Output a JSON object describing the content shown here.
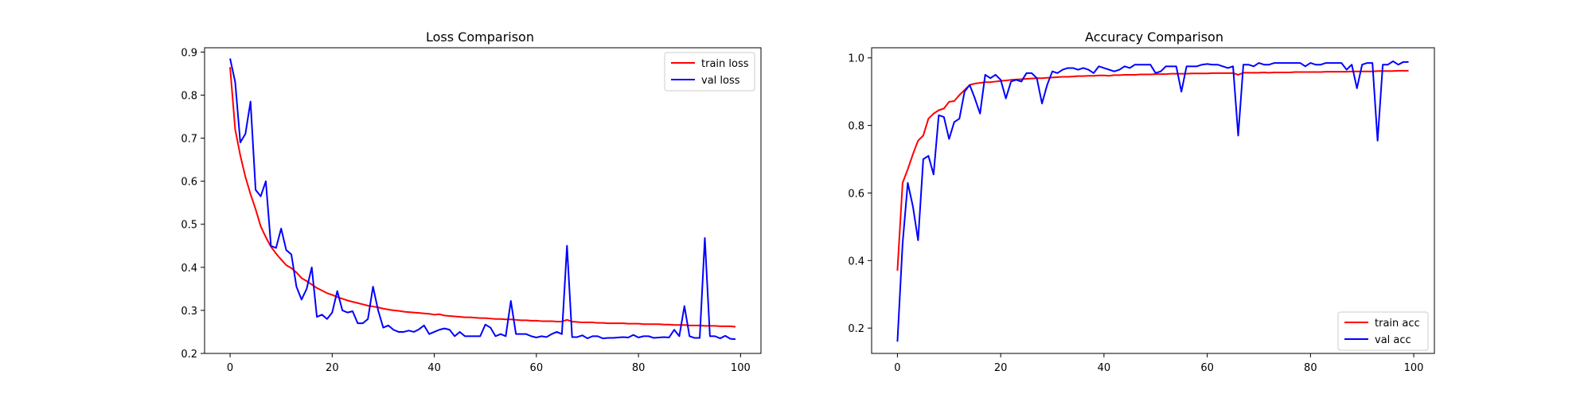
{
  "chart_data": [
    {
      "type": "line",
      "title": "Loss Comparison",
      "xlabel": "",
      "ylabel": "",
      "xlim": [
        -5,
        104
      ],
      "ylim": [
        0.2,
        0.91
      ],
      "xticks": [
        0,
        20,
        40,
        60,
        80,
        100
      ],
      "yticks": [
        0.2,
        0.3,
        0.4,
        0.5,
        0.6,
        0.7,
        0.8,
        0.9
      ],
      "grid": false,
      "legend_position": "top-right",
      "x": [
        0,
        1,
        2,
        3,
        4,
        5,
        6,
        7,
        8,
        9,
        10,
        11,
        12,
        13,
        14,
        15,
        16,
        17,
        18,
        19,
        20,
        21,
        22,
        23,
        24,
        25,
        26,
        27,
        28,
        29,
        30,
        31,
        32,
        33,
        34,
        35,
        36,
        37,
        38,
        39,
        40,
        41,
        42,
        43,
        44,
        45,
        46,
        47,
        48,
        49,
        50,
        51,
        52,
        53,
        54,
        55,
        56,
        57,
        58,
        59,
        60,
        61,
        62,
        63,
        64,
        65,
        66,
        67,
        68,
        69,
        70,
        71,
        72,
        73,
        74,
        75,
        76,
        77,
        78,
        79,
        80,
        81,
        82,
        83,
        84,
        85,
        86,
        87,
        88,
        89,
        90,
        91,
        92,
        93,
        94,
        95,
        96,
        97,
        98,
        99
      ],
      "series": [
        {
          "name": "train loss",
          "color": "#ff0000",
          "values": [
            0.865,
            0.72,
            0.66,
            0.61,
            0.57,
            0.535,
            0.495,
            0.47,
            0.448,
            0.432,
            0.418,
            0.405,
            0.398,
            0.388,
            0.375,
            0.368,
            0.36,
            0.352,
            0.346,
            0.34,
            0.336,
            0.331,
            0.327,
            0.323,
            0.32,
            0.317,
            0.314,
            0.311,
            0.309,
            0.307,
            0.304,
            0.302,
            0.3,
            0.299,
            0.297,
            0.296,
            0.295,
            0.294,
            0.293,
            0.292,
            0.29,
            0.291,
            0.288,
            0.287,
            0.286,
            0.285,
            0.284,
            0.284,
            0.283,
            0.282,
            0.282,
            0.281,
            0.28,
            0.28,
            0.279,
            0.279,
            0.278,
            0.277,
            0.277,
            0.276,
            0.276,
            0.275,
            0.275,
            0.275,
            0.274,
            0.274,
            0.278,
            0.274,
            0.273,
            0.272,
            0.272,
            0.272,
            0.271,
            0.271,
            0.27,
            0.27,
            0.27,
            0.27,
            0.269,
            0.269,
            0.269,
            0.268,
            0.268,
            0.268,
            0.268,
            0.267,
            0.267,
            0.266,
            0.266,
            0.266,
            0.265,
            0.265,
            0.265,
            0.264,
            0.264,
            0.264,
            0.263,
            0.263,
            0.263,
            0.262
          ]
        },
        {
          "name": "val loss",
          "color": "#0000ff",
          "values": [
            0.885,
            0.83,
            0.69,
            0.71,
            0.785,
            0.58,
            0.565,
            0.6,
            0.45,
            0.445,
            0.49,
            0.44,
            0.43,
            0.355,
            0.325,
            0.35,
            0.4,
            0.285,
            0.29,
            0.28,
            0.295,
            0.345,
            0.3,
            0.295,
            0.298,
            0.27,
            0.27,
            0.28,
            0.355,
            0.3,
            0.26,
            0.265,
            0.255,
            0.25,
            0.25,
            0.253,
            0.25,
            0.256,
            0.265,
            0.245,
            0.25,
            0.255,
            0.258,
            0.255,
            0.24,
            0.25,
            0.24,
            0.24,
            0.24,
            0.24,
            0.267,
            0.26,
            0.24,
            0.245,
            0.24,
            0.322,
            0.245,
            0.245,
            0.245,
            0.24,
            0.237,
            0.24,
            0.238,
            0.245,
            0.25,
            0.245,
            0.45,
            0.238,
            0.238,
            0.242,
            0.235,
            0.24,
            0.24,
            0.235,
            0.236,
            0.236,
            0.237,
            0.238,
            0.237,
            0.243,
            0.237,
            0.24,
            0.24,
            0.236,
            0.237,
            0.238,
            0.237,
            0.255,
            0.24,
            0.31,
            0.24,
            0.236,
            0.236,
            0.468,
            0.24,
            0.24,
            0.235,
            0.241,
            0.234,
            0.233
          ]
        }
      ]
    },
    {
      "type": "line",
      "title": "Accuracy Comparison",
      "xlabel": "",
      "ylabel": "",
      "xlim": [
        -5,
        104
      ],
      "ylim": [
        0.125,
        1.03
      ],
      "xticks": [
        0,
        20,
        40,
        60,
        80,
        100
      ],
      "yticks": [
        0.2,
        0.4,
        0.6,
        0.8,
        1.0
      ],
      "grid": false,
      "legend_position": "bottom-right",
      "x": [
        0,
        1,
        2,
        3,
        4,
        5,
        6,
        7,
        8,
        9,
        10,
        11,
        12,
        13,
        14,
        15,
        16,
        17,
        18,
        19,
        20,
        21,
        22,
        23,
        24,
        25,
        26,
        27,
        28,
        29,
        30,
        31,
        32,
        33,
        34,
        35,
        36,
        37,
        38,
        39,
        40,
        41,
        42,
        43,
        44,
        45,
        46,
        47,
        48,
        49,
        50,
        51,
        52,
        53,
        54,
        55,
        56,
        57,
        58,
        59,
        60,
        61,
        62,
        63,
        64,
        65,
        66,
        67,
        68,
        69,
        70,
        71,
        72,
        73,
        74,
        75,
        76,
        77,
        78,
        79,
        80,
        81,
        82,
        83,
        84,
        85,
        86,
        87,
        88,
        89,
        90,
        91,
        92,
        93,
        94,
        95,
        96,
        97,
        98,
        99
      ],
      "series": [
        {
          "name": "train acc",
          "color": "#ff0000",
          "values": [
            0.37,
            0.63,
            0.67,
            0.715,
            0.755,
            0.77,
            0.82,
            0.835,
            0.845,
            0.85,
            0.87,
            0.872,
            0.89,
            0.905,
            0.92,
            0.924,
            0.926,
            0.928,
            0.928,
            0.93,
            0.932,
            0.933,
            0.935,
            0.936,
            0.937,
            0.938,
            0.939,
            0.94,
            0.94,
            0.941,
            0.942,
            0.943,
            0.944,
            0.944,
            0.945,
            0.946,
            0.946,
            0.947,
            0.947,
            0.948,
            0.948,
            0.947,
            0.949,
            0.949,
            0.95,
            0.95,
            0.95,
            0.951,
            0.951,
            0.951,
            0.952,
            0.952,
            0.952,
            0.953,
            0.953,
            0.953,
            0.953,
            0.954,
            0.954,
            0.954,
            0.954,
            0.955,
            0.955,
            0.955,
            0.955,
            0.955,
            0.95,
            0.956,
            0.956,
            0.956,
            0.956,
            0.957,
            0.956,
            0.957,
            0.957,
            0.957,
            0.957,
            0.958,
            0.958,
            0.958,
            0.958,
            0.958,
            0.958,
            0.959,
            0.959,
            0.959,
            0.959,
            0.959,
            0.96,
            0.96,
            0.96,
            0.96,
            0.96,
            0.961,
            0.961,
            0.961,
            0.961,
            0.962,
            0.962,
            0.962
          ]
        },
        {
          "name": "val acc",
          "color": "#0000ff",
          "values": [
            0.16,
            0.45,
            0.63,
            0.56,
            0.46,
            0.7,
            0.71,
            0.655,
            0.83,
            0.825,
            0.76,
            0.81,
            0.82,
            0.9,
            0.92,
            0.88,
            0.835,
            0.95,
            0.94,
            0.95,
            0.935,
            0.88,
            0.93,
            0.935,
            0.93,
            0.955,
            0.955,
            0.94,
            0.865,
            0.92,
            0.96,
            0.955,
            0.965,
            0.97,
            0.97,
            0.965,
            0.97,
            0.965,
            0.955,
            0.975,
            0.97,
            0.965,
            0.96,
            0.965,
            0.975,
            0.97,
            0.98,
            0.98,
            0.98,
            0.98,
            0.955,
            0.96,
            0.975,
            0.975,
            0.975,
            0.9,
            0.975,
            0.975,
            0.975,
            0.98,
            0.982,
            0.98,
            0.98,
            0.975,
            0.97,
            0.975,
            0.77,
            0.98,
            0.98,
            0.975,
            0.985,
            0.98,
            0.98,
            0.985,
            0.985,
            0.985,
            0.985,
            0.985,
            0.985,
            0.975,
            0.985,
            0.98,
            0.98,
            0.985,
            0.985,
            0.985,
            0.985,
            0.965,
            0.98,
            0.91,
            0.98,
            0.985,
            0.985,
            0.755,
            0.98,
            0.98,
            0.99,
            0.98,
            0.988,
            0.988
          ]
        }
      ]
    }
  ]
}
